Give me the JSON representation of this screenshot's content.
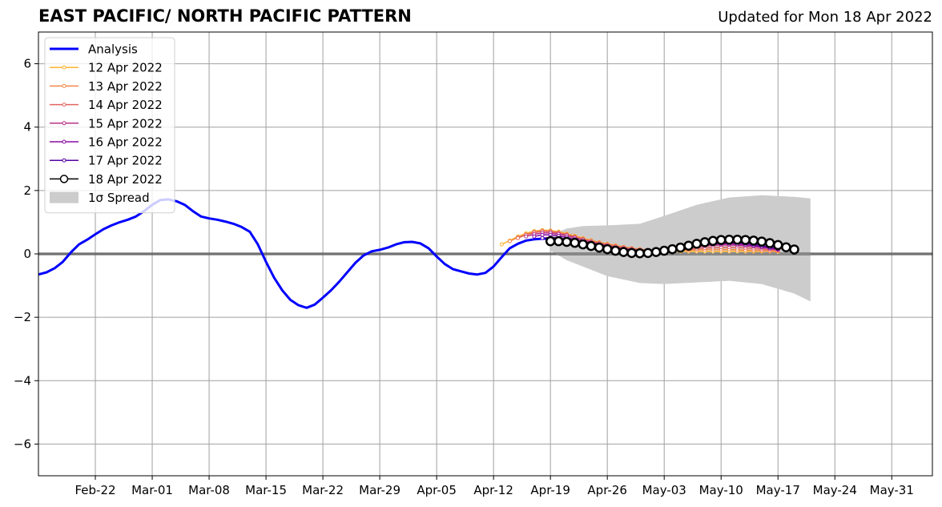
{
  "chart_data": {
    "type": "line",
    "title": "EAST PACIFIC/ NORTH PACIFIC PATTERN",
    "subtitle": "Updated for Mon 18 Apr 2022",
    "xlabel": "",
    "ylabel": "",
    "x_range": [
      "2022-02-15",
      "2022-06-05"
    ],
    "ylim": [
      -7,
      7
    ],
    "y_ticks": [
      -6,
      -4,
      -2,
      0,
      2,
      4,
      6
    ],
    "y_tick_labels": [
      "−6",
      "−4",
      "−2",
      "0",
      "2",
      "4",
      "6"
    ],
    "x_ticks": [
      "2022-02-22",
      "2022-03-01",
      "2022-03-08",
      "2022-03-15",
      "2022-03-22",
      "2022-03-29",
      "2022-04-05",
      "2022-04-12",
      "2022-04-19",
      "2022-04-26",
      "2022-05-03",
      "2022-05-10",
      "2022-05-17",
      "2022-05-24",
      "2022-05-31"
    ],
    "x_tick_labels": [
      "Feb-22",
      "Mar-01",
      "Mar-08",
      "Mar-15",
      "Mar-22",
      "Mar-29",
      "Apr-05",
      "Apr-12",
      "Apr-19",
      "Apr-26",
      "May-03",
      "May-10",
      "May-17",
      "May-24",
      "May-31"
    ],
    "grid": true,
    "zero_line": true,
    "legend_position": "top-left",
    "analysis": {
      "name": "Analysis",
      "color": "#0000ff",
      "start_date": "2022-02-15",
      "values": [
        -0.65,
        -0.58,
        -0.45,
        -0.25,
        0.05,
        0.3,
        0.45,
        0.62,
        0.78,
        0.9,
        1.0,
        1.08,
        1.18,
        1.35,
        1.55,
        1.7,
        1.72,
        1.66,
        1.55,
        1.35,
        1.18,
        1.12,
        1.08,
        1.02,
        0.95,
        0.85,
        0.7,
        0.3,
        -0.25,
        -0.75,
        -1.15,
        -1.45,
        -1.62,
        -1.7,
        -1.6,
        -1.38,
        -1.15,
        -0.88,
        -0.58,
        -0.28,
        -0.05,
        0.08,
        0.13,
        0.2,
        0.3,
        0.37,
        0.38,
        0.33,
        0.18,
        -0.08,
        -0.32,
        -0.48,
        -0.55,
        -0.62,
        -0.65,
        -0.6,
        -0.4,
        -0.1,
        0.18,
        0.32,
        0.42,
        0.46,
        0.48,
        0.48,
        0.45,
        0.38
      ]
    },
    "forecasts": [
      {
        "name": "12 Apr 2022",
        "color": "#fdb42f",
        "start_date": "2022-04-13",
        "values": [
          0.3,
          0.42,
          0.55,
          0.65,
          0.72,
          0.75,
          0.74,
          0.7,
          0.64,
          0.57,
          0.5,
          0.43,
          0.37,
          0.32,
          0.27,
          0.22,
          0.18,
          0.15,
          0.12,
          0.1,
          0.09,
          0.08,
          0.08,
          0.08,
          0.08,
          0.08,
          0.08,
          0.08,
          0.08,
          0.08,
          0.08,
          0.08,
          0.08,
          0.08,
          0.07
        ]
      },
      {
        "name": "13 Apr 2022",
        "color": "#f48849",
        "start_date": "2022-04-14",
        "values": [
          0.4,
          0.52,
          0.62,
          0.7,
          0.73,
          0.72,
          0.68,
          0.62,
          0.55,
          0.48,
          0.42,
          0.36,
          0.31,
          0.26,
          0.22,
          0.18,
          0.15,
          0.12,
          0.1,
          0.1,
          0.1,
          0.11,
          0.12,
          0.13,
          0.14,
          0.14,
          0.14,
          0.14,
          0.13,
          0.12,
          0.11,
          0.1,
          0.09,
          0.08
        ]
      },
      {
        "name": "14 Apr 2022",
        "color": "#e16462",
        "start_date": "2022-04-15",
        "values": [
          0.5,
          0.6,
          0.67,
          0.71,
          0.7,
          0.66,
          0.6,
          0.53,
          0.46,
          0.4,
          0.34,
          0.29,
          0.24,
          0.2,
          0.16,
          0.13,
          0.11,
          0.1,
          0.1,
          0.11,
          0.13,
          0.15,
          0.17,
          0.19,
          0.2,
          0.21,
          0.21,
          0.2,
          0.19,
          0.17,
          0.15,
          0.13,
          0.11
        ]
      },
      {
        "name": "15 Apr 2022",
        "color": "#b83289",
        "start_date": "2022-04-16",
        "values": [
          0.55,
          0.62,
          0.66,
          0.66,
          0.63,
          0.58,
          0.51,
          0.44,
          0.37,
          0.31,
          0.26,
          0.21,
          0.17,
          0.14,
          0.11,
          0.1,
          0.1,
          0.11,
          0.13,
          0.16,
          0.19,
          0.22,
          0.25,
          0.27,
          0.28,
          0.28,
          0.27,
          0.25,
          0.23,
          0.2,
          0.17,
          0.14
        ]
      },
      {
        "name": "16 Apr 2022",
        "color": "#8b0aa5",
        "start_date": "2022-04-17",
        "values": [
          0.55,
          0.6,
          0.6,
          0.57,
          0.52,
          0.46,
          0.39,
          0.33,
          0.27,
          0.21,
          0.17,
          0.13,
          0.1,
          0.08,
          0.08,
          0.09,
          0.11,
          0.14,
          0.18,
          0.22,
          0.26,
          0.29,
          0.31,
          0.32,
          0.32,
          0.31,
          0.29,
          0.26,
          0.22,
          0.18,
          0.14
        ]
      },
      {
        "name": "17 Apr 2022",
        "color": "#5302a3",
        "start_date": "2022-04-18",
        "values": [
          0.5,
          0.52,
          0.5,
          0.46,
          0.4,
          0.34,
          0.28,
          0.22,
          0.17,
          0.12,
          0.08,
          0.05,
          0.04,
          0.05,
          0.07,
          0.1,
          0.14,
          0.19,
          0.24,
          0.28,
          0.32,
          0.35,
          0.36,
          0.36,
          0.35,
          0.33,
          0.3,
          0.26,
          0.21,
          0.16
        ]
      },
      {
        "name": "18 Apr 2022",
        "color": "#000000",
        "start_date": "2022-04-19",
        "values": [
          0.4,
          0.4,
          0.38,
          0.35,
          0.3,
          0.25,
          0.2,
          0.15,
          0.1,
          0.06,
          0.03,
          0.02,
          0.03,
          0.06,
          0.1,
          0.15,
          0.2,
          0.26,
          0.32,
          0.37,
          0.41,
          0.44,
          0.45,
          0.45,
          0.44,
          0.42,
          0.39,
          0.34,
          0.28,
          0.21,
          0.14
        ]
      }
    ],
    "spread": {
      "name": "1σ Spread",
      "color": "#cccccc",
      "dates": [
        "2022-04-19",
        "2022-04-21",
        "2022-04-23",
        "2022-04-26",
        "2022-04-30",
        "2022-05-03",
        "2022-05-07",
        "2022-05-11",
        "2022-05-15",
        "2022-05-19",
        "2022-05-21"
      ],
      "upper": [
        0.6,
        0.8,
        0.88,
        0.9,
        0.95,
        1.2,
        1.55,
        1.78,
        1.85,
        1.8,
        1.75
      ],
      "lower": [
        0.1,
        -0.2,
        -0.4,
        -0.7,
        -0.92,
        -0.95,
        -0.9,
        -0.85,
        -0.95,
        -1.25,
        -1.5
      ]
    }
  }
}
